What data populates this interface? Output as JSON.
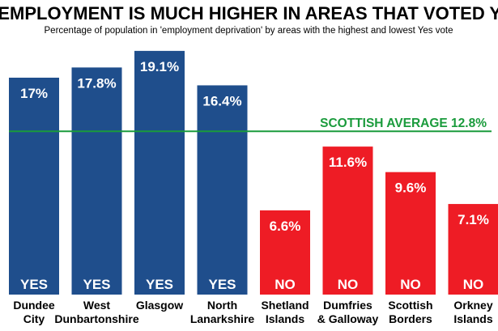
{
  "chart_data": {
    "type": "bar",
    "title": "UNEMPLOYMENT IS MUCH HIGHER IN AREAS THAT VOTED YES",
    "subtitle": "Percentage of population in 'employment deprivation' by areas with the highest and lowest Yes vote",
    "categories": [
      [
        "Dundee",
        "City"
      ],
      [
        "West",
        "Dunbartonshire"
      ],
      [
        "Glasgow"
      ],
      [
        "North",
        "Lanarkshire"
      ],
      [
        "Shetland",
        "Islands"
      ],
      [
        "Dumfries",
        "& Galloway"
      ],
      [
        "Scottish",
        "Borders"
      ],
      [
        "Orkney",
        "Islands"
      ]
    ],
    "values": [
      17,
      17.8,
      19.1,
      16.4,
      6.6,
      11.6,
      9.6,
      7.1
    ],
    "value_labels": [
      "17%",
      "17.8%",
      "19.1%",
      "16.4%",
      "6.6%",
      "11.6%",
      "9.6%",
      "7.1%"
    ],
    "vote": [
      "YES",
      "YES",
      "YES",
      "YES",
      "NO",
      "NO",
      "NO",
      "NO"
    ],
    "reference_line": {
      "label": "SCOTTISH AVERAGE 12.8%",
      "value": 12.8
    },
    "ylim": [
      0,
      19.6
    ],
    "grid": false,
    "colors": {
      "YES": "#1f4e8c",
      "NO": "#ee1c25",
      "average": "#1a9b3c"
    }
  }
}
